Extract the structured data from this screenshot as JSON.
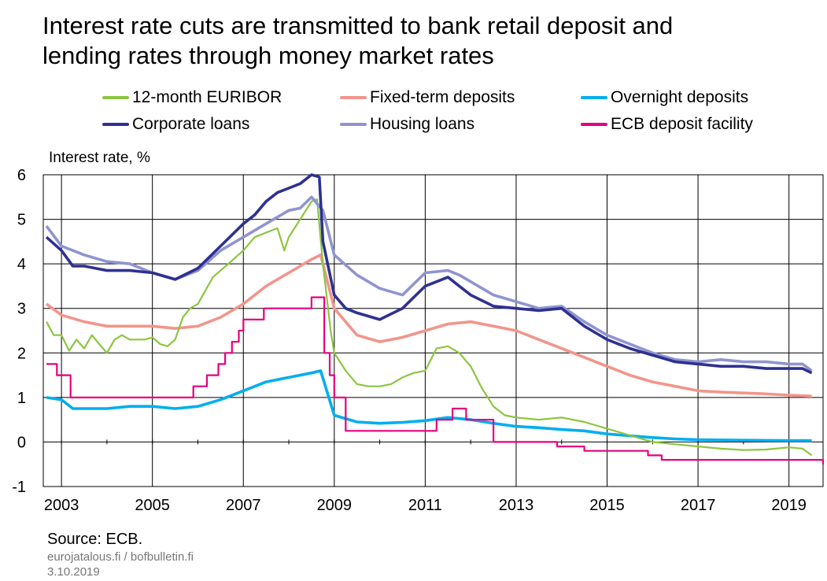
{
  "title_line1": "Interest rate cuts are transmitted to bank retail deposit and",
  "title_line2": "lending rates through money market rates",
  "source": "Source: ECB.",
  "footer_site": "eurojatalous.fi  /  bofbulletin.fi",
  "footer_date": "3.10.2019",
  "chart_data": {
    "type": "line",
    "ylabel": "Interest rate, %",
    "xlabel": "",
    "ylim": [
      -1,
      6
    ],
    "xlim": [
      2002.6,
      2019.75
    ],
    "yticks": [
      -1,
      0,
      1,
      2,
      3,
      4,
      5,
      6
    ],
    "xticks": [
      2003,
      2005,
      2007,
      2009,
      2011,
      2013,
      2015,
      2017,
      2019
    ],
    "xtick_labels": [
      "2003",
      "2005",
      "2007",
      "2009",
      "2011",
      "2013",
      "2015",
      "2017",
      "2019"
    ],
    "grid": true,
    "legend_position": "top",
    "series": [
      {
        "name": "12-month EURIBOR",
        "color": "#8cc63f",
        "x": [
          2002.67,
          2002.83,
          2003.0,
          2003.17,
          2003.33,
          2003.5,
          2003.67,
          2003.83,
          2004.0,
          2004.17,
          2004.33,
          2004.5,
          2004.67,
          2004.83,
          2005.0,
          2005.17,
          2005.33,
          2005.5,
          2005.67,
          2005.83,
          2006.0,
          2006.33,
          2006.67,
          2007.0,
          2007.25,
          2007.5,
          2007.75,
          2007.9,
          2008.0,
          2008.25,
          2008.5,
          2008.62,
          2008.75,
          2008.92,
          2009.0,
          2009.25,
          2009.5,
          2009.75,
          2010.0,
          2010.25,
          2010.5,
          2010.75,
          2011.0,
          2011.25,
          2011.5,
          2011.75,
          2012.0,
          2012.25,
          2012.5,
          2012.75,
          2013.0,
          2013.5,
          2014.0,
          2014.5,
          2015.0,
          2015.5,
          2016.0,
          2016.5,
          2017.0,
          2017.5,
          2018.0,
          2018.5,
          2019.0,
          2019.3,
          2019.5
        ],
        "y": [
          2.7,
          2.4,
          2.4,
          2.05,
          2.3,
          2.1,
          2.4,
          2.2,
          2.0,
          2.3,
          2.4,
          2.3,
          2.3,
          2.3,
          2.35,
          2.2,
          2.15,
          2.3,
          2.8,
          3.0,
          3.1,
          3.7,
          4.0,
          4.3,
          4.6,
          4.7,
          4.8,
          4.3,
          4.6,
          5.0,
          5.4,
          5.45,
          4.0,
          2.5,
          2.0,
          1.6,
          1.3,
          1.25,
          1.25,
          1.3,
          1.45,
          1.55,
          1.6,
          2.1,
          2.15,
          2.0,
          1.7,
          1.2,
          0.8,
          0.6,
          0.55,
          0.5,
          0.55,
          0.45,
          0.3,
          0.15,
          0.0,
          -0.05,
          -0.1,
          -0.15,
          -0.18,
          -0.17,
          -0.12,
          -0.15,
          -0.3
        ]
      },
      {
        "name": "Fixed-term deposits",
        "color": "#f2958b",
        "x": [
          2002.67,
          2003.0,
          2003.5,
          2004.0,
          2004.5,
          2005.0,
          2005.5,
          2006.0,
          2006.5,
          2007.0,
          2007.5,
          2008.0,
          2008.5,
          2008.7,
          2009.0,
          2009.5,
          2010.0,
          2010.5,
          2011.0,
          2011.5,
          2012.0,
          2012.5,
          2013.0,
          2013.5,
          2014.0,
          2014.5,
          2015.0,
          2015.5,
          2016.0,
          2016.5,
          2017.0,
          2017.5,
          2018.0,
          2018.5,
          2019.0,
          2019.5
        ],
        "y": [
          3.1,
          2.85,
          2.7,
          2.6,
          2.6,
          2.6,
          2.55,
          2.6,
          2.8,
          3.1,
          3.5,
          3.8,
          4.1,
          4.2,
          3.0,
          2.4,
          2.25,
          2.35,
          2.5,
          2.65,
          2.7,
          2.6,
          2.5,
          2.3,
          2.1,
          1.9,
          1.7,
          1.5,
          1.35,
          1.25,
          1.15,
          1.12,
          1.1,
          1.08,
          1.05,
          1.03
        ]
      },
      {
        "name": "Overnight deposits",
        "color": "#00aeef",
        "x": [
          2002.67,
          2003.0,
          2003.25,
          2003.5,
          2004.0,
          2004.5,
          2005.0,
          2005.5,
          2006.0,
          2006.5,
          2007.0,
          2007.5,
          2008.0,
          2008.5,
          2008.7,
          2009.0,
          2009.5,
          2010.0,
          2010.5,
          2011.0,
          2011.5,
          2012.0,
          2012.5,
          2013.0,
          2013.5,
          2014.0,
          2014.5,
          2015.0,
          2015.5,
          2016.0,
          2016.5,
          2017.0,
          2018.0,
          2019.0,
          2019.5
        ],
        "y": [
          1.0,
          0.95,
          0.75,
          0.75,
          0.75,
          0.8,
          0.8,
          0.75,
          0.8,
          0.95,
          1.15,
          1.35,
          1.45,
          1.55,
          1.6,
          0.6,
          0.45,
          0.42,
          0.44,
          0.48,
          0.55,
          0.5,
          0.42,
          0.35,
          0.32,
          0.28,
          0.25,
          0.18,
          0.14,
          0.1,
          0.07,
          0.05,
          0.04,
          0.03,
          0.03
        ]
      },
      {
        "name": "Corporate loans",
        "color": "#2e3192",
        "x": [
          2002.67,
          2003.0,
          2003.25,
          2003.5,
          2004.0,
          2004.5,
          2005.0,
          2005.5,
          2006.0,
          2006.5,
          2007.0,
          2007.25,
          2007.5,
          2007.75,
          2008.0,
          2008.25,
          2008.5,
          2008.67,
          2008.75,
          2009.0,
          2009.25,
          2009.5,
          2010.0,
          2010.5,
          2011.0,
          2011.5,
          2011.75,
          2012.0,
          2012.5,
          2013.0,
          2013.5,
          2014.0,
          2014.5,
          2015.0,
          2015.5,
          2016.0,
          2016.5,
          2017.0,
          2017.5,
          2018.0,
          2018.5,
          2019.0,
          2019.3,
          2019.5
        ],
        "y": [
          4.6,
          4.3,
          3.95,
          3.95,
          3.85,
          3.85,
          3.8,
          3.65,
          3.9,
          4.4,
          4.9,
          5.1,
          5.4,
          5.6,
          5.7,
          5.8,
          6.0,
          5.95,
          4.5,
          3.3,
          3.0,
          2.9,
          2.75,
          3.0,
          3.5,
          3.7,
          3.5,
          3.3,
          3.05,
          3.0,
          2.95,
          3.0,
          2.6,
          2.3,
          2.1,
          1.95,
          1.8,
          1.75,
          1.7,
          1.7,
          1.65,
          1.65,
          1.65,
          1.55
        ]
      },
      {
        "name": "Housing loans",
        "color": "#8f94d0",
        "x": [
          2002.67,
          2003.0,
          2003.5,
          2004.0,
          2004.5,
          2005.0,
          2005.5,
          2006.0,
          2006.5,
          2007.0,
          2007.5,
          2008.0,
          2008.25,
          2008.5,
          2008.75,
          2009.0,
          2009.5,
          2010.0,
          2010.5,
          2011.0,
          2011.5,
          2011.75,
          2012.0,
          2012.5,
          2013.0,
          2013.5,
          2014.0,
          2014.5,
          2015.0,
          2015.5,
          2016.0,
          2016.5,
          2017.0,
          2017.5,
          2018.0,
          2018.5,
          2019.0,
          2019.3,
          2019.5
        ],
        "y": [
          4.85,
          4.4,
          4.2,
          4.05,
          4.0,
          3.8,
          3.65,
          3.85,
          4.3,
          4.6,
          4.9,
          5.2,
          5.25,
          5.5,
          5.2,
          4.2,
          3.75,
          3.45,
          3.3,
          3.8,
          3.85,
          3.75,
          3.6,
          3.3,
          3.15,
          3.0,
          3.05,
          2.7,
          2.4,
          2.2,
          2.0,
          1.85,
          1.8,
          1.85,
          1.8,
          1.8,
          1.75,
          1.75,
          1.6
        ]
      },
      {
        "name": "ECB deposit facility",
        "color": "#e6007e",
        "step": true,
        "x": [
          2002.67,
          2002.9,
          2003.2,
          2003.5,
          2005.9,
          2006.2,
          2006.45,
          2006.6,
          2006.75,
          2006.9,
          2007.0,
          2007.45,
          2008.0,
          2008.5,
          2008.78,
          2008.9,
          2009.0,
          2009.25,
          2010.0,
          2011.25,
          2011.6,
          2011.9,
          2012.5,
          2013.0,
          2013.9,
          2014.5,
          2014.8,
          2015.9,
          2016.2,
          2017.0,
          2019.0,
          2019.65,
          2019.75
        ],
        "y": [
          1.75,
          1.5,
          1.0,
          1.0,
          1.25,
          1.5,
          1.75,
          2.0,
          2.25,
          2.5,
          2.75,
          3.0,
          3.0,
          3.25,
          2.0,
          1.5,
          1.0,
          0.25,
          0.25,
          0.5,
          0.75,
          0.5,
          0.0,
          0.0,
          -0.1,
          -0.2,
          -0.2,
          -0.3,
          -0.4,
          -0.4,
          -0.4,
          -0.4,
          -0.5
        ]
      }
    ]
  }
}
